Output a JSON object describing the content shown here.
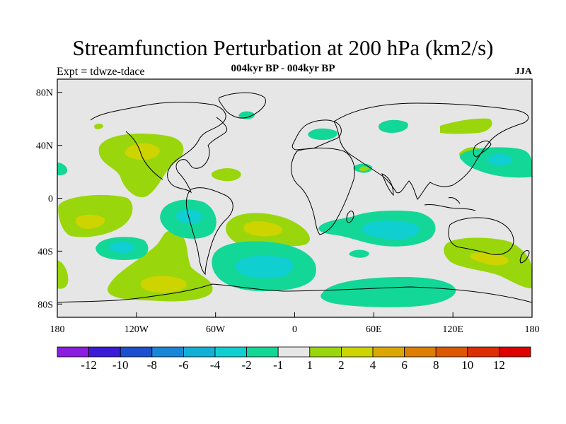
{
  "title": "Streamfunction Perturbation at 200 hPa (km2/s)",
  "subtitle": "004kyr BP - 004kyr BP",
  "left_label": "Expt = tdwze-tdace",
  "right_label": "JJA",
  "map": {
    "type": "filled-contour-map",
    "projection": "cylindrical-equidistant",
    "lon_range": [
      -180,
      180
    ],
    "lat_range": [
      -90,
      90
    ],
    "lon_ticks": [
      {
        "value": -180,
        "label": "180"
      },
      {
        "value": -120,
        "label": "120W"
      },
      {
        "value": -60,
        "label": "60W"
      },
      {
        "value": 0,
        "label": "0"
      },
      {
        "value": 60,
        "label": "60E"
      },
      {
        "value": 120,
        "label": "120E"
      },
      {
        "value": 180,
        "label": "180"
      }
    ],
    "lat_ticks": [
      {
        "value": 80,
        "label": "80N"
      },
      {
        "value": 40,
        "label": "40N"
      },
      {
        "value": 0,
        "label": "0"
      },
      {
        "value": -40,
        "label": "40S"
      },
      {
        "value": -80,
        "label": "80S"
      }
    ],
    "background_color": "#e6e6e6",
    "coastline_color": "#000000"
  },
  "colorbar": {
    "labels": [
      "-12",
      "-10",
      "-8",
      "-6",
      "-4",
      "-2",
      "-1",
      "1",
      "2",
      "4",
      "6",
      "8",
      "10",
      "12"
    ],
    "colors": [
      "#8a1de0",
      "#3b1cd6",
      "#1c4fcf",
      "#1a86d8",
      "#12b0d6",
      "#10cfd0",
      "#13d797",
      "#e6e6e6",
      "#9ad60c",
      "#cdd400",
      "#dca800",
      "#dd7e00",
      "#dd5800",
      "#dc2e00",
      "#dd0000"
    ]
  },
  "chart_data": {
    "type": "heatmap",
    "title": "Streamfunction Perturbation at 200 hPa (km2/s)",
    "xlabel": "",
    "ylabel": "",
    "xlim": [
      -180,
      180
    ],
    "ylim": [
      -90,
      90
    ],
    "levels": [
      -12,
      -10,
      -8,
      -6,
      -4,
      -2,
      -1,
      1,
      2,
      4,
      6,
      8,
      10,
      12
    ],
    "features": [
      {
        "lon": -140,
        "lat": 38,
        "value": 2
      },
      {
        "lon": -118,
        "lat": 5,
        "value": 1
      },
      {
        "lon": -150,
        "lat": -18,
        "value": 2
      },
      {
        "lon": -125,
        "lat": -38,
        "value": -2
      },
      {
        "lon": -80,
        "lat": -12,
        "value": -2
      },
      {
        "lon": -105,
        "lat": -66,
        "value": 2
      },
      {
        "lon": -20,
        "lat": -25,
        "value": 1
      },
      {
        "lon": -20,
        "lat": -52,
        "value": -2
      },
      {
        "lon": 80,
        "lat": -25,
        "value": -2
      },
      {
        "lon": 75,
        "lat": -70,
        "value": -1
      },
      {
        "lon": 155,
        "lat": 27,
        "value": -2
      },
      {
        "lon": 145,
        "lat": 48,
        "value": 1
      },
      {
        "lon": 155,
        "lat": -48,
        "value": 2
      },
      {
        "lon": 25,
        "lat": 50,
        "value": -1
      },
      {
        "lon": 65,
        "lat": 56,
        "value": -1
      },
      {
        "lon": -35,
        "lat": 63,
        "value": -1
      },
      {
        "lon": 50,
        "lat": 22,
        "value": -1
      }
    ]
  }
}
